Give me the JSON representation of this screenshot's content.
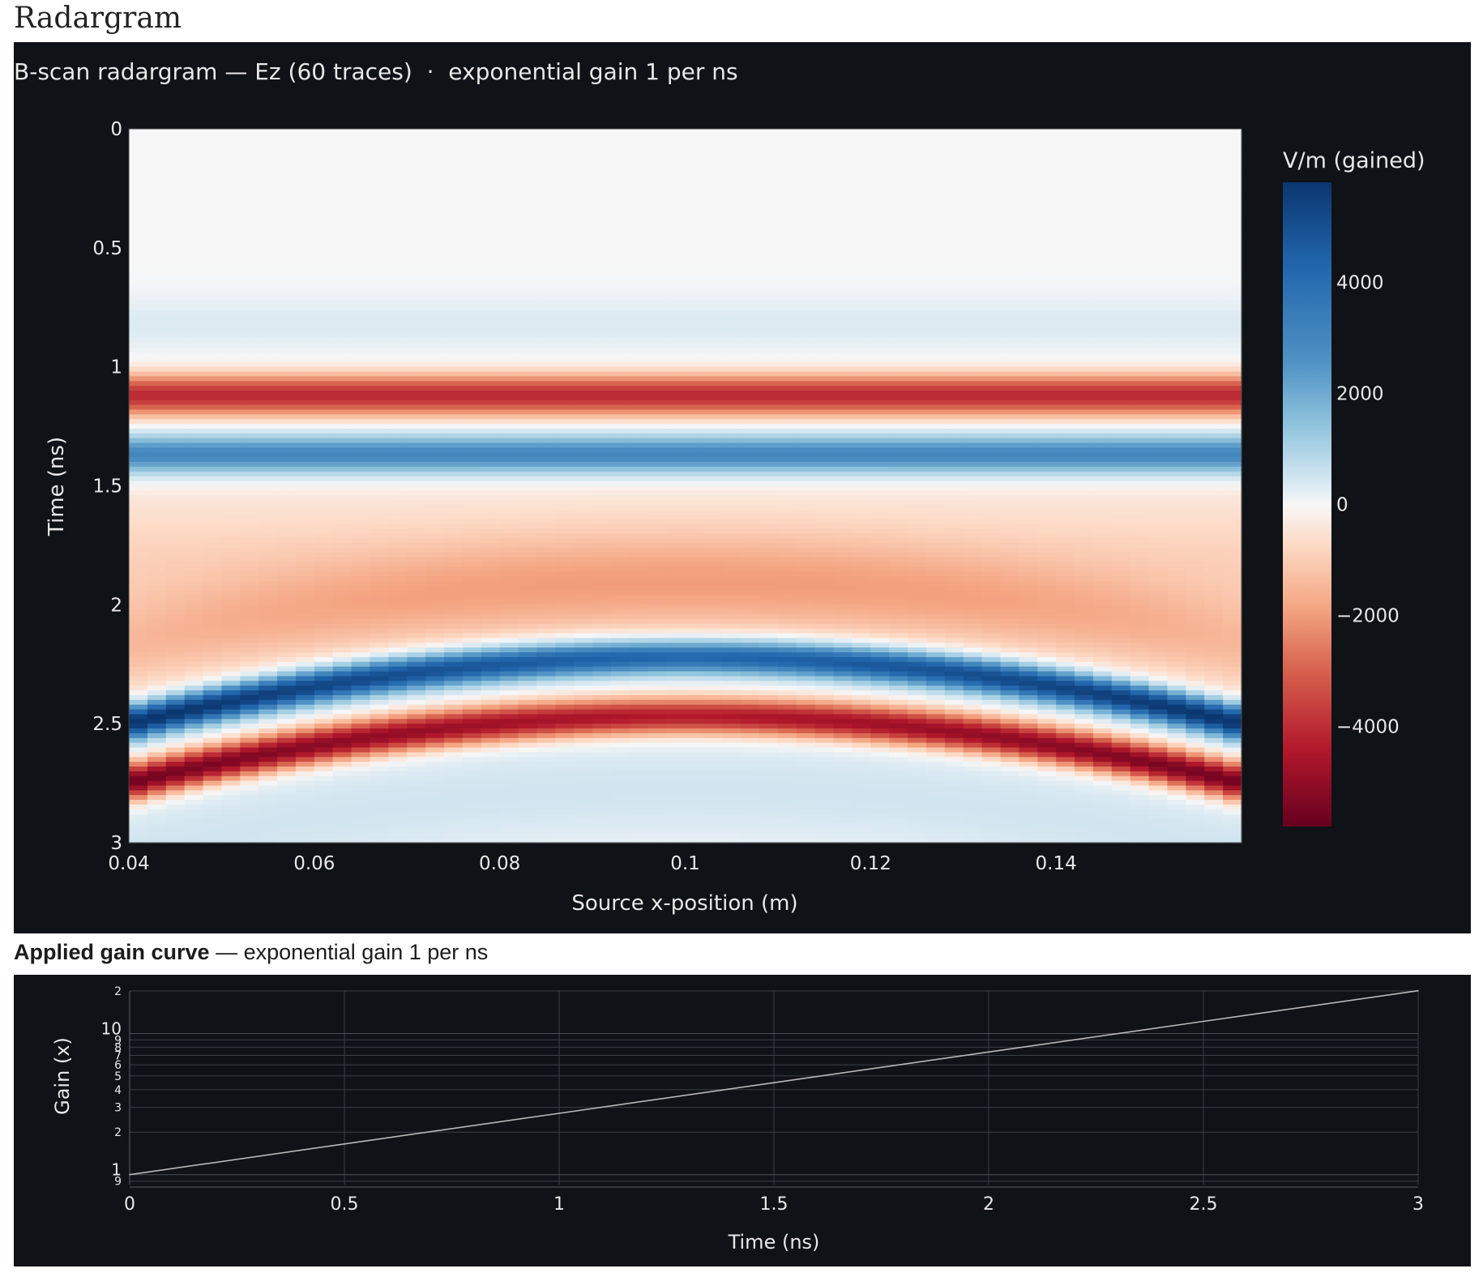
{
  "page": {
    "title": "Radargram"
  },
  "colors": {
    "panel_bg": "#0f1217",
    "text": "#e8e8e8",
    "grid": "#3a3f47",
    "line": "#b8b8b8"
  },
  "chart_data": [
    {
      "type": "heatmap",
      "title": "B-scan radargram — Ez (60 traces)  ·  exponential gain 1 per ns",
      "xlabel": "Source x-position (m)",
      "ylabel": "Time (ns)",
      "xlim": [
        0.04,
        0.16
      ],
      "ylim": [
        3,
        0
      ],
      "x_ticks": [
        "0.04",
        "0.06",
        "0.08",
        "0.1",
        "0.12",
        "0.14"
      ],
      "y_ticks": [
        "0",
        "0.5",
        "1",
        "1.5",
        "2",
        "2.5",
        "3"
      ],
      "traces": 60,
      "colorscale": "RdBu",
      "colorbar": {
        "title": "V/m (gained)",
        "range": [
          -5800,
          5800
        ],
        "ticks": [
          "4000",
          "2000",
          "0",
          "−2000",
          "−4000"
        ]
      },
      "direct_wave": {
        "negative_peak_time_ns": 1.12,
        "positive_peak_time_ns": 1.37,
        "amplitude_v_per_m": 4000
      },
      "hyperbola": {
        "apex_x_m": 0.1,
        "apex_time_ns": 2.22,
        "edge_time_ns": 2.5,
        "lobe_separation_ns": 0.25,
        "amplitude_v_per_m": 5800
      }
    },
    {
      "type": "line",
      "title": "Applied gain curve",
      "subtitle": "exponential gain 1 per ns",
      "xlabel": "Time (ns)",
      "ylabel": "Gain (x)",
      "yscale": "log",
      "xlim": [
        0,
        3
      ],
      "ylim": [
        0.85,
        20
      ],
      "x_ticks": [
        "0",
        "0.5",
        "1",
        "1.5",
        "2",
        "2.5",
        "3"
      ],
      "y_major_ticks": [
        "1",
        "10"
      ],
      "y_minor_ticks": [
        "9",
        "2",
        "3",
        "4",
        "5",
        "6",
        "7",
        "8",
        "9",
        "2"
      ],
      "x": [
        0,
        0.5,
        1,
        1.5,
        2,
        2.5,
        3
      ],
      "y": [
        1,
        1.65,
        2.72,
        4.48,
        7.39,
        12.18,
        20.09
      ]
    }
  ]
}
